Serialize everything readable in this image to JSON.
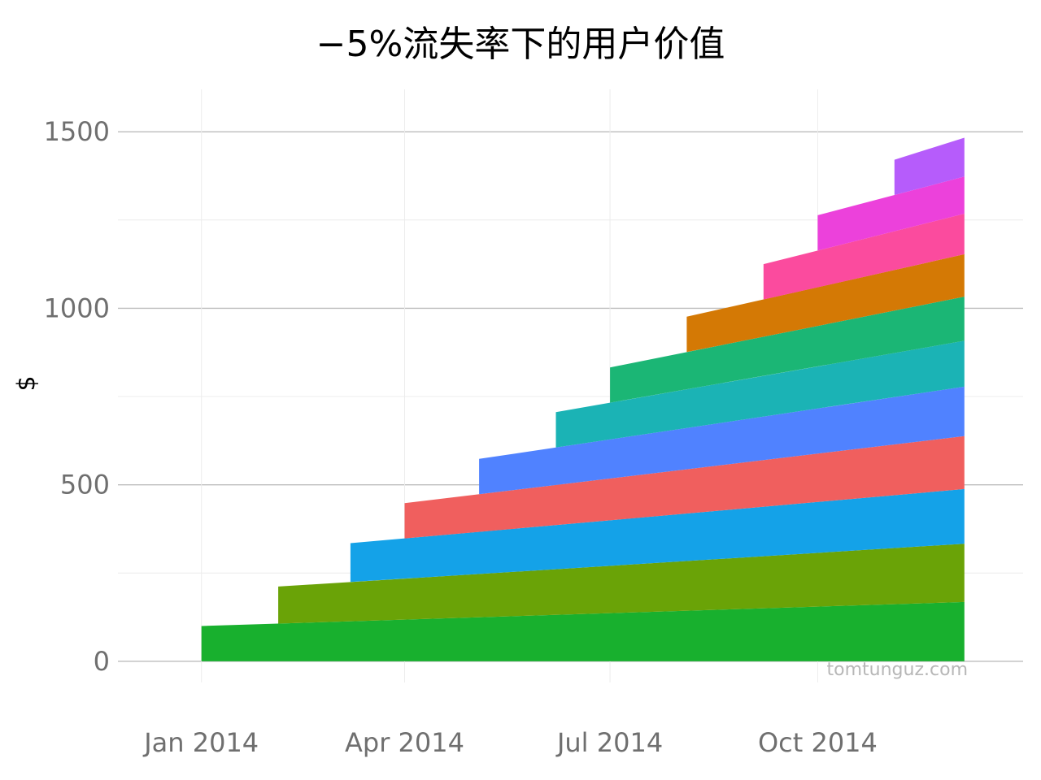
{
  "chart_data": {
    "type": "area",
    "title": "−5%流失率下的用户价值",
    "xlabel": "",
    "ylabel": "$",
    "ylim": [
      -60,
      1620
    ],
    "yticks": [
      0,
      500,
      1000,
      1500
    ],
    "x_domain": [
      "2013-11-25",
      "2014-12-31"
    ],
    "xticks": [
      {
        "date": "2014-01-01",
        "label": "Jan 2014"
      },
      {
        "date": "2014-04-01",
        "label": "Apr 2014"
      },
      {
        "date": "2014-07-01",
        "label": "Jul 2014"
      },
      {
        "date": "2014-10-01",
        "label": "Oct 2014"
      }
    ],
    "grid": true,
    "legend": "none",
    "watermark": "tomtunguz.com",
    "series": [
      {
        "color": "#18b02e",
        "start": "2014-01-01",
        "end": "2014-12-05",
        "start_value": 100,
        "end_value": 168
      },
      {
        "color": "#6aa307",
        "start": "2014-02-04",
        "end": "2014-12-05",
        "start_value": 105,
        "end_value": 165
      },
      {
        "color": "#14a2e8",
        "start": "2014-03-08",
        "end": "2014-12-05",
        "start_value": 110,
        "end_value": 155
      },
      {
        "color": "#f05f5e",
        "start": "2014-04-01",
        "end": "2014-12-05",
        "start_value": 100,
        "end_value": 150
      },
      {
        "color": "#5082ff",
        "start": "2014-05-04",
        "end": "2014-12-05",
        "start_value": 100,
        "end_value": 140
      },
      {
        "color": "#1bb3b5",
        "start": "2014-06-07",
        "end": "2014-12-05",
        "start_value": 100,
        "end_value": 130
      },
      {
        "color": "#1bb675",
        "start": "2014-07-01",
        "end": "2014-12-05",
        "start_value": 100,
        "end_value": 125
      },
      {
        "color": "#d47905",
        "start": "2014-08-04",
        "end": "2014-12-05",
        "start_value": 100,
        "end_value": 120
      },
      {
        "color": "#fb4b9e",
        "start": "2014-09-07",
        "end": "2014-12-05",
        "start_value": 100,
        "end_value": 115
      },
      {
        "color": "#ec41db",
        "start": "2014-10-01",
        "end": "2014-12-05",
        "start_value": 100,
        "end_value": 105
      },
      {
        "color": "#b65cfb",
        "start": "2014-11-04",
        "end": "2014-12-05",
        "start_value": 100,
        "end_value": 110
      }
    ]
  }
}
